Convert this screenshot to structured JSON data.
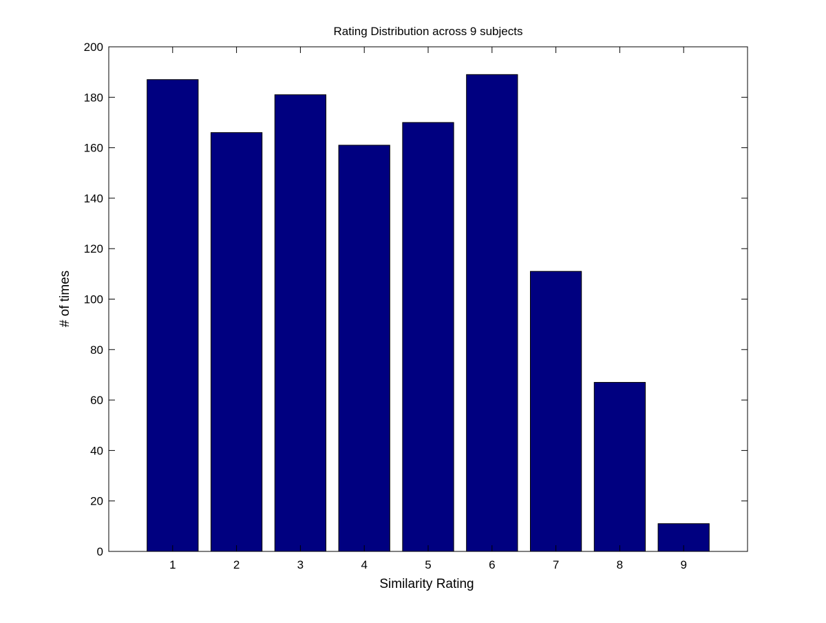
{
  "chart_data": {
    "type": "bar",
    "title": "Rating Distribution across 9 subjects",
    "xlabel": "Similarity Rating",
    "ylabel": "# of times",
    "categories": [
      "1",
      "2",
      "3",
      "4",
      "5",
      "6",
      "7",
      "8",
      "9"
    ],
    "values": [
      187,
      166,
      181,
      161,
      170,
      189,
      111,
      67,
      11
    ],
    "xlim": [
      0,
      10
    ],
    "ylim": [
      0,
      200
    ],
    "yticks": [
      0,
      20,
      40,
      60,
      80,
      100,
      120,
      140,
      160,
      180,
      200
    ],
    "bar_color": "#000080",
    "grid": false,
    "legend": "none"
  }
}
